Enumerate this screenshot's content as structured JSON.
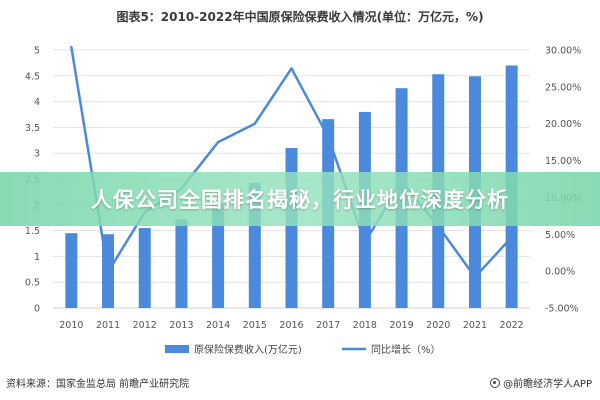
{
  "title": "图表5：2010-2022年中国原保险保费收入情况(单位：万亿元，%)",
  "banner": "人保公司全国排名揭秘，行业地位深度分析",
  "source": "资料来源：国家金监总局 前瞻产业研究院",
  "brand": "@前瞻经济学人APP",
  "chart_data": {
    "type": "bar",
    "categories": [
      "2010",
      "2011",
      "2012",
      "2013",
      "2014",
      "2015",
      "2016",
      "2017",
      "2018",
      "2019",
      "2020",
      "2021",
      "2022"
    ],
    "series": [
      {
        "name": "原保险保费收入(万亿元)",
        "type": "bar",
        "axis": "left",
        "color": "#4A89DC",
        "values": [
          1.45,
          1.43,
          1.55,
          1.72,
          2.02,
          2.43,
          3.1,
          3.66,
          3.8,
          4.26,
          4.53,
          4.49,
          4.7
        ]
      },
      {
        "name": "同比增长（%）",
        "type": "line",
        "axis": "right",
        "color": "#4A89DC",
        "values": [
          30.4,
          -0.1,
          8.0,
          11.2,
          17.5,
          20.0,
          27.5,
          18.2,
          3.9,
          12.2,
          6.1,
          -0.8,
          4.6
        ]
      }
    ],
    "y_left": {
      "min": 0,
      "max": 5,
      "ticks": [
        "0",
        "0.5",
        "1",
        "1.5",
        "2",
        "2.5",
        "3",
        "3.5",
        "4",
        "4.5",
        "5"
      ]
    },
    "y_right": {
      "min": -5,
      "max": 30,
      "ticks": [
        "-5.00%",
        "0.00%",
        "5.00%",
        "10.00%",
        "15.00%",
        "20.00%",
        "25.00%",
        "30.00%"
      ]
    },
    "grid": true,
    "legend": "bottom"
  }
}
